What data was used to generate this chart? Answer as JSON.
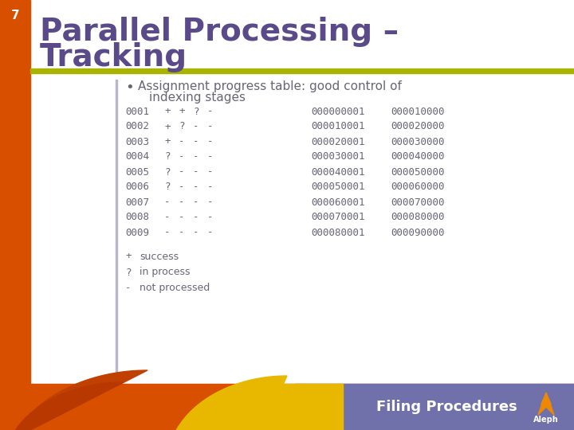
{
  "slide_number": "7",
  "title_line1": "Parallel Processing –",
  "title_line2": "Tracking",
  "bullet_text_line1": "Assignment progress table: good control of",
  "bullet_text_line2": "indexing stages",
  "table_rows": [
    [
      "0001",
      "+",
      "+",
      "?",
      "-",
      "000000001",
      "000010000"
    ],
    [
      "0002",
      "+",
      "?",
      "-",
      "-",
      "000010001",
      "000020000"
    ],
    [
      "0003",
      "+",
      "-",
      "-",
      "-",
      "000020001",
      "000030000"
    ],
    [
      "0004",
      "?",
      "-",
      "-",
      "-",
      "000030001",
      "000040000"
    ],
    [
      "0005",
      "?",
      "-",
      "-",
      "-",
      "000040001",
      "000050000"
    ],
    [
      "0006",
      "?",
      "-",
      "-",
      "-",
      "000050001",
      "000060000"
    ],
    [
      "0007",
      "-",
      "-",
      "-",
      "-",
      "000060001",
      "000070000"
    ],
    [
      "0008",
      "-",
      "-",
      "-",
      "-",
      "000070001",
      "000080000"
    ],
    [
      "0009",
      "-",
      "-",
      "-",
      "-",
      "000080001",
      "000090000"
    ]
  ],
  "legend": [
    [
      "+",
      "success"
    ],
    [
      "?",
      "in process"
    ],
    [
      "-",
      "not processed"
    ]
  ],
  "footer_text": "Filing Procedures",
  "bg_white": "#ffffff",
  "left_bar_color": "#d94f00",
  "title_color": "#5b4a8a",
  "olive_line_color": "#a8b400",
  "table_text_color": "#666677",
  "footer_bg_color": "#7070aa",
  "footer_text_color": "#ffffff",
  "orange_color": "#d94f00",
  "yellow_color": "#e8b800",
  "slide_num_color": "#ffffff",
  "vert_line_color": "#b8b8c8"
}
